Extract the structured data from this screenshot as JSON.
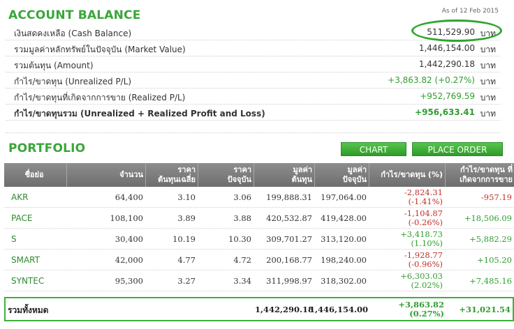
{
  "account": {
    "title": "ACCOUNT BALANCE",
    "as_of": "As of 12 Feb 2015",
    "rows": [
      {
        "label": "เงินสดคงเหลือ (Cash Balance)",
        "value": "511,529.90",
        "unit": "บาท"
      },
      {
        "label": "รวมมูลค่าหลักทรัพย์ในปัจจุบัน (Market Value)",
        "value": "1,446,154.00",
        "unit": "บาท"
      },
      {
        "label": "รวมต้นทุน (Amount)",
        "value": "1,442,290.18",
        "unit": "บาท"
      },
      {
        "label": "กำไร/ขาดทุน (Unrealized P/L)",
        "value": "+3,863.82 (+0.27%)",
        "unit": "บาท"
      },
      {
        "label": "กำไร/ขาดทุนที่เกิดจากการขาย (Realized P/L)",
        "value": "+952,769.59",
        "unit": "บาท"
      },
      {
        "label": "กำไร/ขาดทุนรวม (Unrealized + Realized Profit and Loss)",
        "value": "+956,633.41",
        "unit": "บาท"
      }
    ]
  },
  "portfolio": {
    "title": "PORTFOLIO",
    "chart_button": "CHART",
    "order_button": "PLACE ORDER",
    "headers": [
      [
        "ชื่อย่อ"
      ],
      [
        "จำนวน"
      ],
      [
        "ราคา",
        "ต้นทุนเฉลี่ย"
      ],
      [
        "ราคา",
        "ปัจจุบัน"
      ],
      [
        "มูลค่า",
        "ต้นทุน"
      ],
      [
        "มูลค่า",
        "ปัจจุบัน"
      ],
      [
        "กำไร/ขาดทุน (%)"
      ],
      [
        "กำไร/ขาดทุน ที่",
        "เกิดจากการขาย"
      ]
    ],
    "rows": [
      {
        "symbol": "AKR",
        "qty": "64,400",
        "avg_cost": "3.10",
        "price": "3.06",
        "cost_value": "199,888.31",
        "market_value": "197,064.00",
        "pl": "-2,824.31",
        "pl_pct": "(-1.41%)",
        "realized": "-957.19"
      },
      {
        "symbol": "PACE",
        "qty": "108,100",
        "avg_cost": "3.89",
        "price": "3.88",
        "cost_value": "420,532.87",
        "market_value": "419,428.00",
        "pl": "-1,104.87",
        "pl_pct": "(-0.26%)",
        "realized": "+18,506.09"
      },
      {
        "symbol": "S",
        "qty": "30,400",
        "avg_cost": "10.19",
        "price": "10.30",
        "cost_value": "309,701.27",
        "market_value": "313,120.00",
        "pl": "+3,418.73",
        "pl_pct": "(1.10%)",
        "realized": "+5,882.29"
      },
      {
        "symbol": "SMART",
        "qty": "42,000",
        "avg_cost": "4.77",
        "price": "4.72",
        "cost_value": "200,168.77",
        "market_value": "198,240.00",
        "pl": "-1,928.77",
        "pl_pct": "(-0.96%)",
        "realized": "+105.20"
      },
      {
        "symbol": "SYNTEC",
        "qty": "95,300",
        "avg_cost": "3.27",
        "price": "3.34",
        "cost_value": "311,998.97",
        "market_value": "318,302.00",
        "pl": "+6,303.03",
        "pl_pct": "(2.02%)",
        "realized": "+7,485.16"
      }
    ],
    "total": {
      "label": "รวมทั้งหมด",
      "cost_value": "1,442,290.18",
      "market_value": "1,446,154.00",
      "pl": "+3,863.82",
      "pl_pct": "(0.27%)",
      "realized": "+31,021.54"
    }
  },
  "colors": {
    "accent_green": "#3aa63a",
    "negative_red": "#c0302a",
    "header_gray": "#7d7d7d"
  }
}
